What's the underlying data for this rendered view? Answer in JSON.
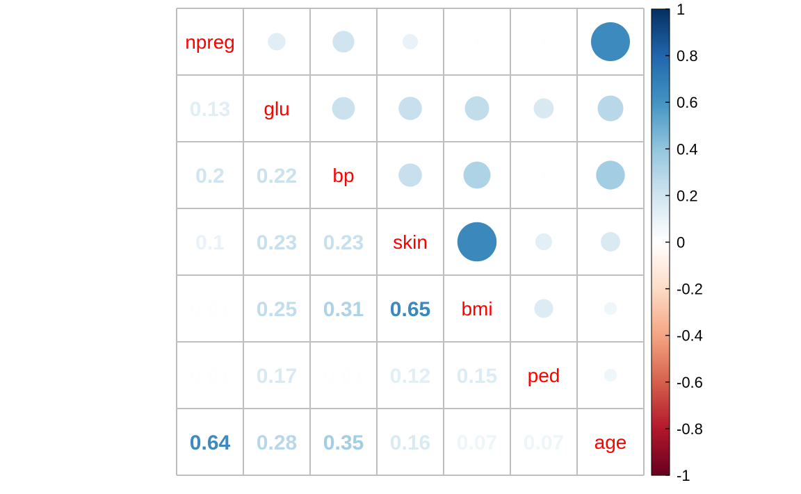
{
  "chart_data": {
    "type": "heatmap",
    "style": "corrplot mixed: circles in upper triangle, numbers in lower triangle",
    "variables": [
      "npreg",
      "glu",
      "bp",
      "skin",
      "bmi",
      "ped",
      "age"
    ],
    "matrix": [
      [
        1.0,
        0.13,
        0.2,
        0.1,
        0.01,
        0.01,
        0.64
      ],
      [
        0.13,
        1.0,
        0.22,
        0.23,
        0.25,
        0.17,
        0.28
      ],
      [
        0.2,
        0.22,
        1.0,
        0.23,
        0.31,
        0.01,
        0.35
      ],
      [
        0.1,
        0.23,
        0.23,
        1.0,
        0.65,
        0.12,
        0.16
      ],
      [
        0.01,
        0.25,
        0.31,
        0.65,
        1.0,
        0.15,
        0.07
      ],
      [
        0.01,
        0.17,
        0.01,
        0.12,
        0.15,
        1.0,
        0.07
      ],
      [
        0.64,
        0.28,
        0.35,
        0.16,
        0.07,
        0.07,
        1.0
      ]
    ],
    "lower_labels": [
      [
        "",
        "",
        "",
        "",
        "",
        "",
        ""
      ],
      [
        "0.13",
        "",
        "",
        "",
        "",
        "",
        ""
      ],
      [
        "0.2",
        "0.22",
        "",
        "",
        "",
        "",
        ""
      ],
      [
        "0.1",
        "0.23",
        "0.23",
        "",
        "",
        "",
        ""
      ],
      [
        "0.01",
        "0.25",
        "0.31",
        "0.65",
        "",
        "",
        ""
      ],
      [
        "0.01",
        "0.17",
        "0.01",
        "0.12",
        "0.15",
        "",
        ""
      ],
      [
        "0.64",
        "0.28",
        "0.35",
        "0.16",
        "0.07",
        "0.07",
        ""
      ]
    ],
    "legend": {
      "position": "right",
      "range": [
        -1,
        1
      ],
      "ticks": [
        "1",
        "0.8",
        "0.6",
        "0.4",
        "0.2",
        "0",
        "-0.2",
        "-0.4",
        "-0.6",
        "-0.8",
        "-1"
      ],
      "palette": [
        "#67001F",
        "#B2182B",
        "#D6604D",
        "#F4A582",
        "#FDDBC7",
        "#FFFFFF",
        "#D1E5F0",
        "#92C5DE",
        "#4393C3",
        "#2166AC",
        "#053061"
      ]
    },
    "label_color": "#ff0000",
    "grid": true,
    "grid_color": "#bebebe"
  }
}
